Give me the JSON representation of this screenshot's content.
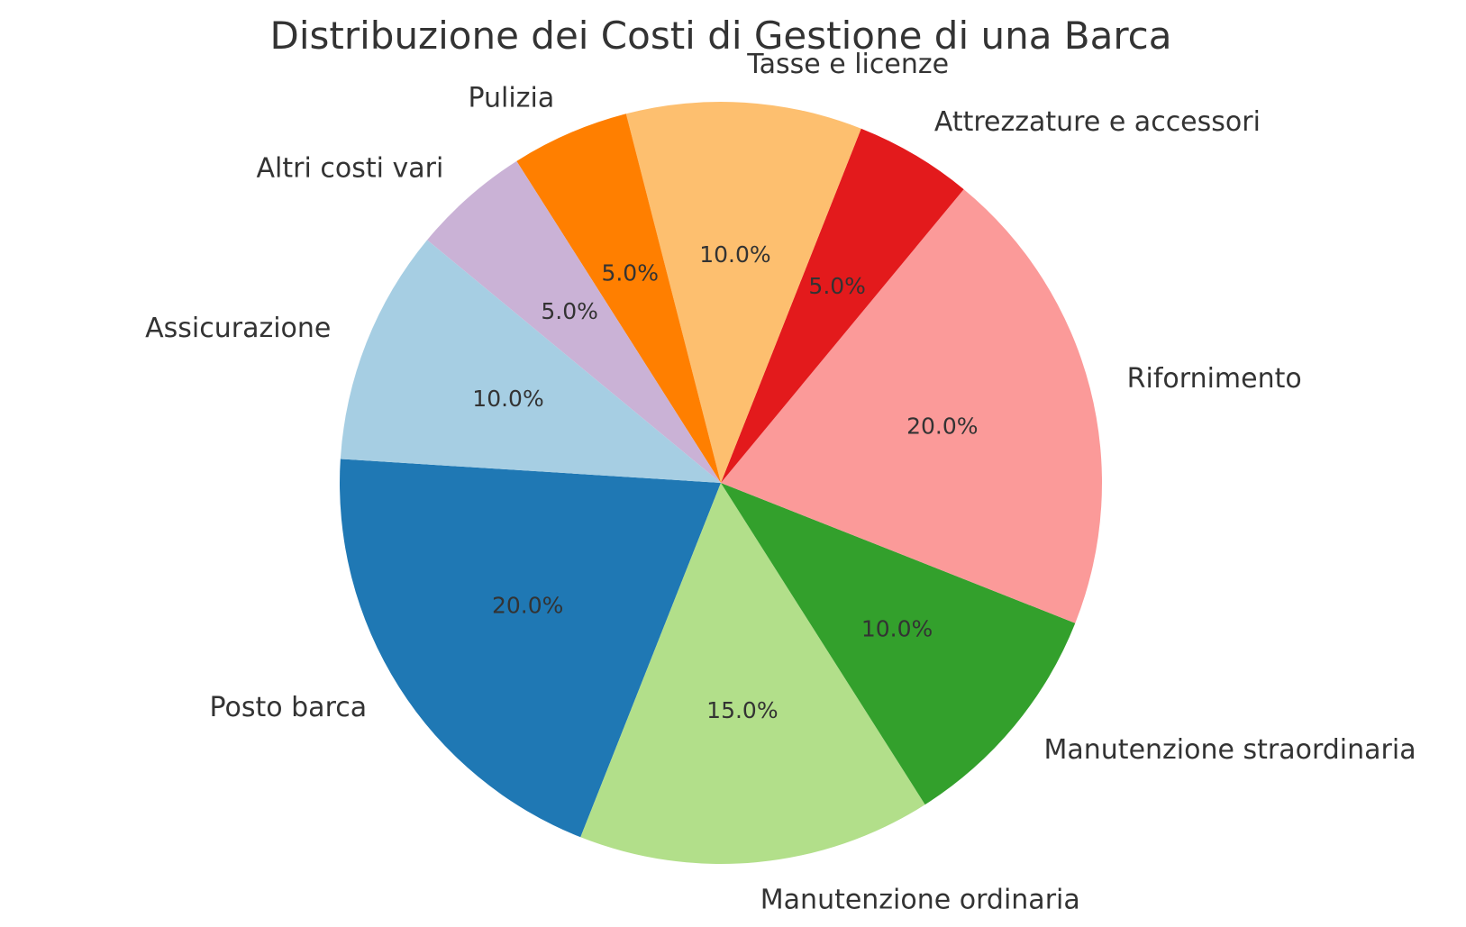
{
  "chart_data": {
    "type": "pie",
    "title": "Distribuzione dei Costi di Gestione di una Barca",
    "categories": [
      "Posto barca",
      "Manutenzione ordinaria",
      "Manutenzione straordinaria",
      "Rifornimento",
      "Attrezzature e accessori",
      "Tasse e licenze",
      "Pulizia",
      "Altri costi vari",
      "Assicurazione"
    ],
    "values": [
      20.0,
      15.0,
      10.0,
      20.0,
      5.0,
      10.0,
      5.0,
      5.0,
      10.0
    ],
    "percent_labels": [
      "20.0%",
      "15.0%",
      "10.0%",
      "20.0%",
      "5.0%",
      "10.0%",
      "5.0%",
      "5.0%",
      "10.0%"
    ],
    "colors": [
      "#1f78b4",
      "#b2df8a",
      "#33a02c",
      "#fb9a99",
      "#e31a1c",
      "#fdbf6f",
      "#ff7f00",
      "#cab2d6",
      "#a6cee3"
    ],
    "start_angle_deg": 176.4,
    "direction": "counterclockwise"
  }
}
